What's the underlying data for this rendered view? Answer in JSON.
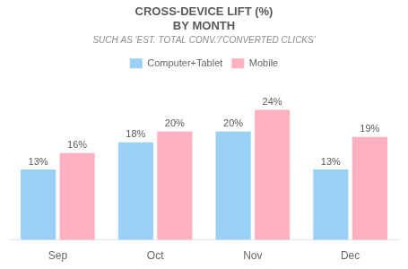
{
  "chart_data": {
    "type": "bar",
    "title": [
      "CROSS-DEVICE LIFT (%)",
      "BY MONTH"
    ],
    "subtitle": "SUCH AS 'EST. TOTAL CONV.'/'CONVERTED CLICKS'",
    "categories": [
      "Sep",
      "Oct",
      "Nov",
      "Dec"
    ],
    "series": [
      {
        "name": "Computer+Tablet",
        "values": [
          13,
          18,
          20,
          13
        ],
        "value_labels": [
          "13%",
          "18%",
          "20%",
          "13%"
        ]
      },
      {
        "name": "Mobile",
        "values": [
          16,
          20,
          24,
          19
        ],
        "value_labels": [
          "16%",
          "20%",
          "24%",
          "19%"
        ]
      }
    ],
    "ylim": [
      0,
      30
    ],
    "grid": false,
    "legend": "top",
    "data_labels": true,
    "tick_labels": "x"
  }
}
